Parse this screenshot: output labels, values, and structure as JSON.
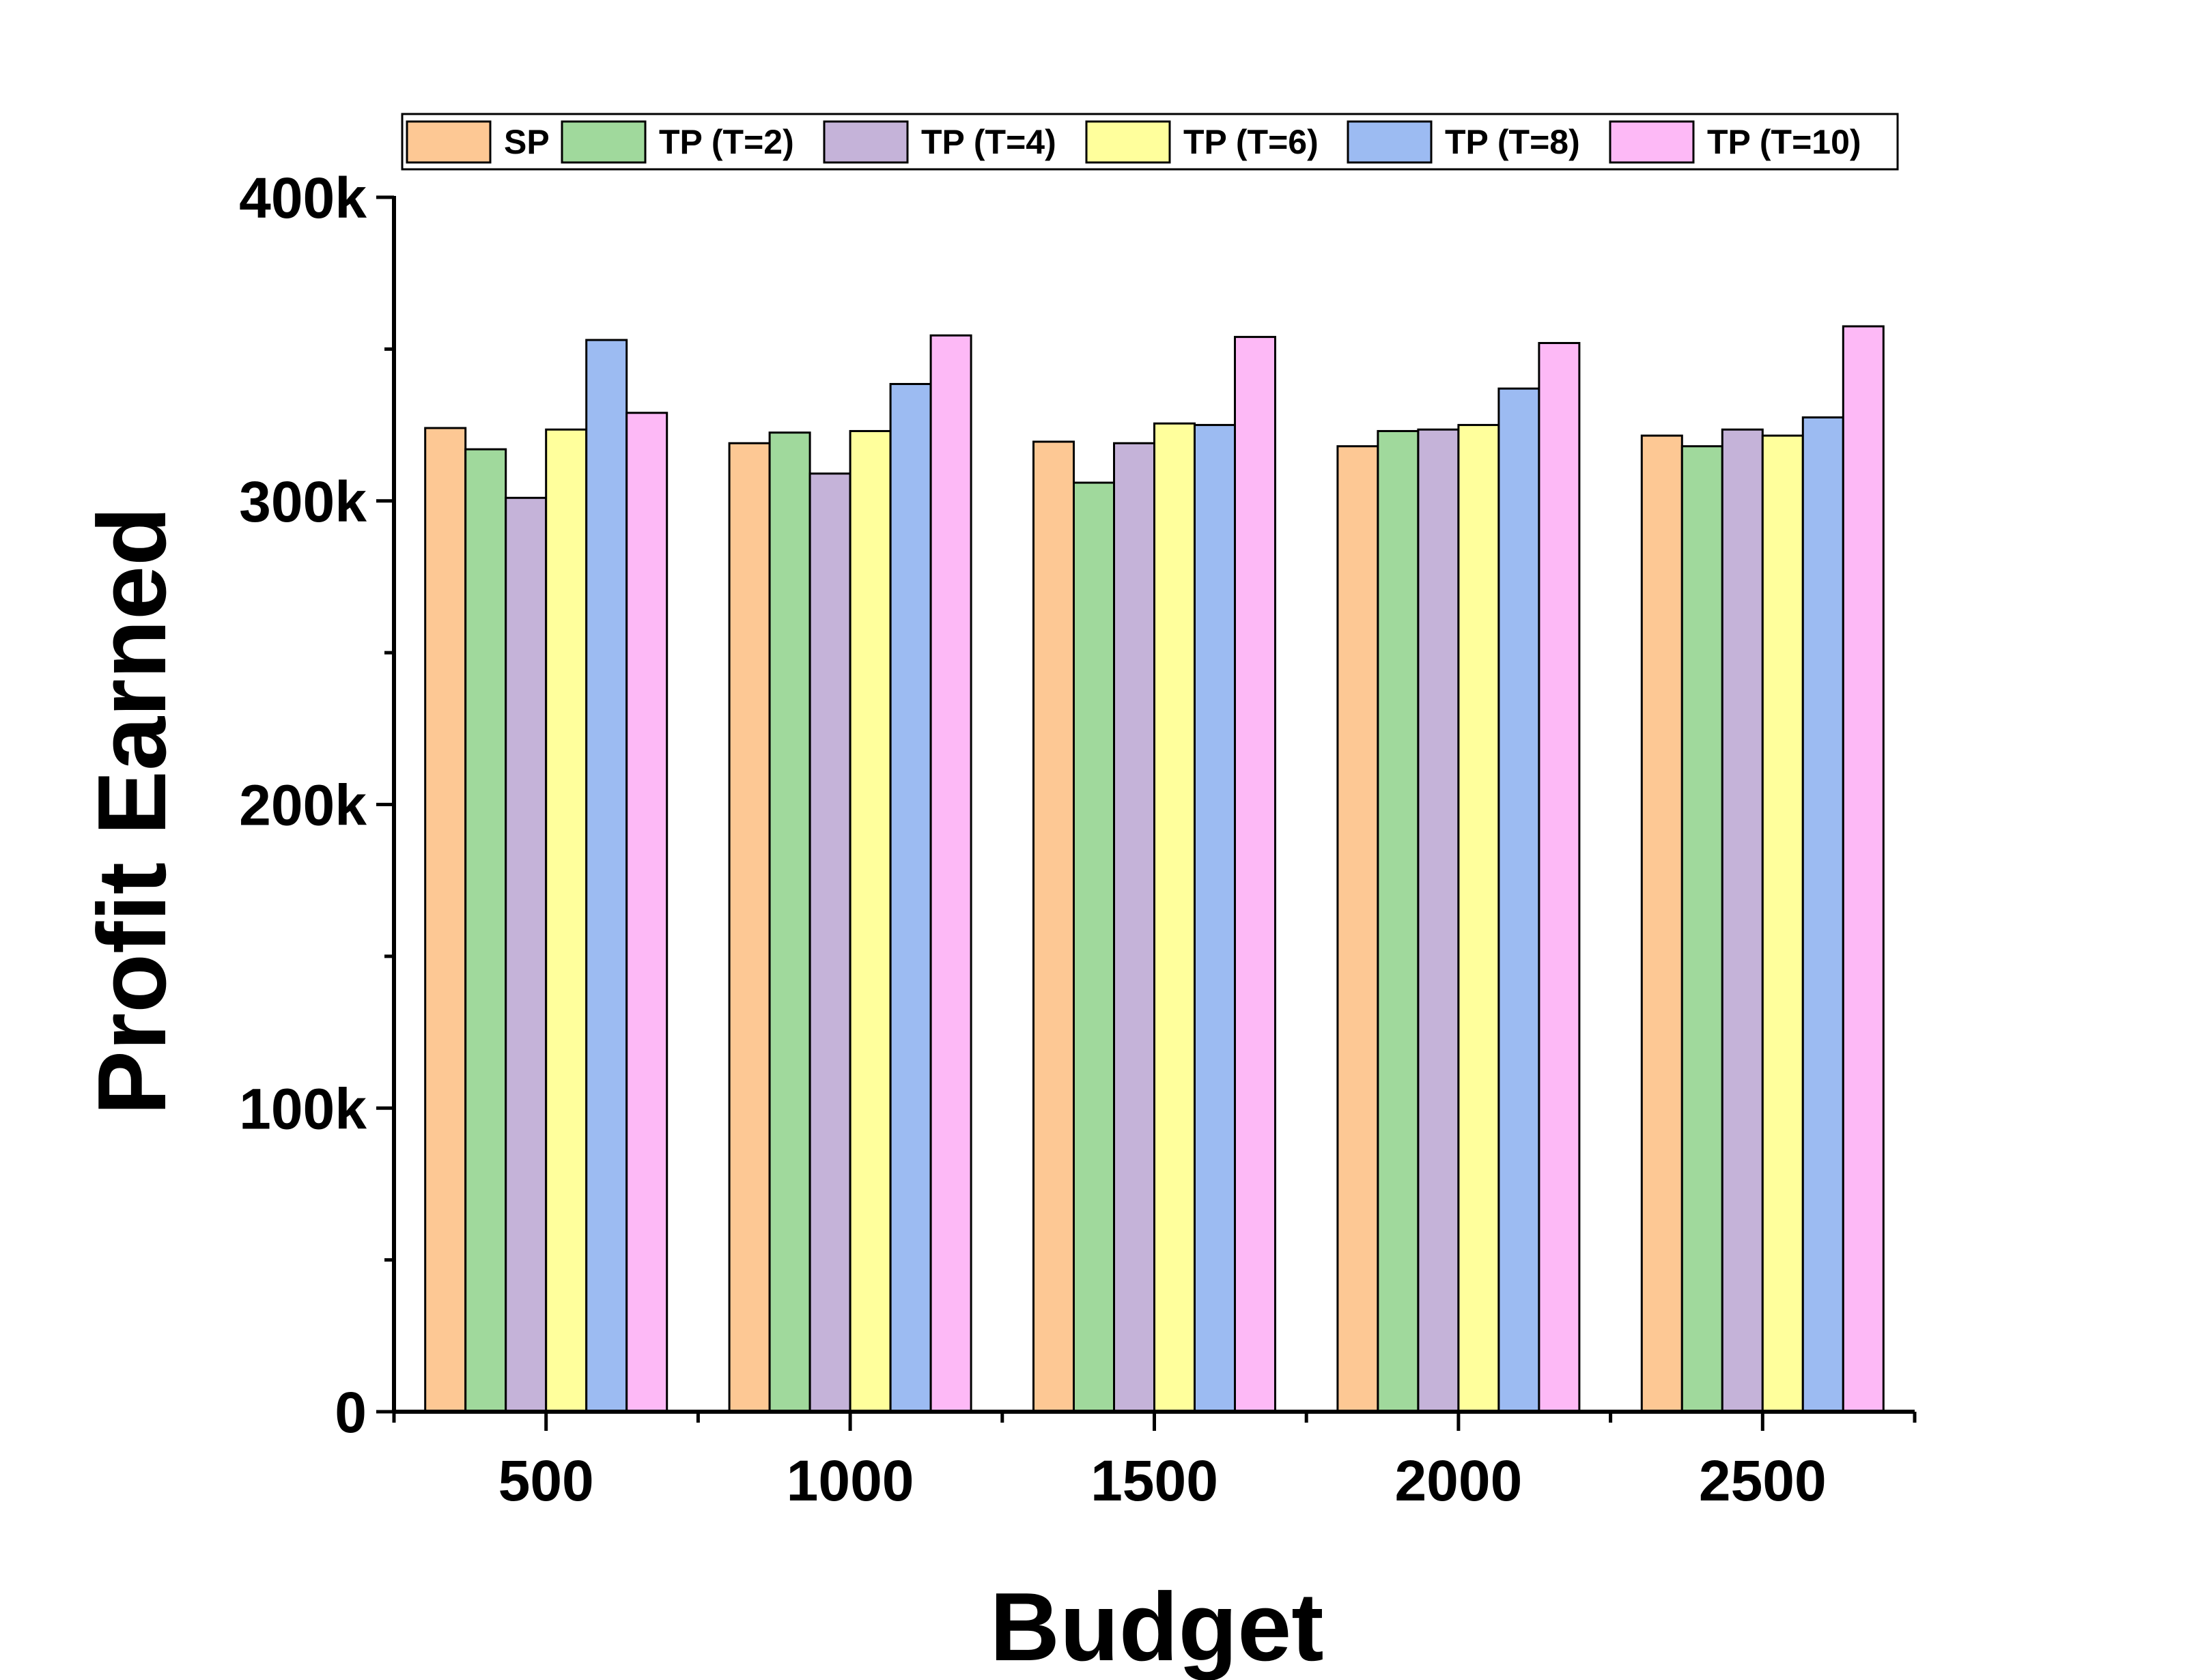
{
  "chart_data": {
    "type": "bar",
    "xlabel": "Budget",
    "ylabel": "Profit Earned",
    "categories": [
      "500",
      "1000",
      "1500",
      "2000",
      "2500"
    ],
    "ylim": [
      0,
      400000
    ],
    "yticks": [
      {
        "value": 0,
        "label": "0"
      },
      {
        "value": 100000,
        "label": "100k"
      },
      {
        "value": 200000,
        "label": "200k"
      },
      {
        "value": 300000,
        "label": "300k"
      },
      {
        "value": 400000,
        "label": "400k"
      }
    ],
    "legend_position": "top",
    "grid": false,
    "series": [
      {
        "name": "SP",
        "color": "#FDC894",
        "values": [
          324000,
          319000,
          319500,
          318000,
          321500
        ]
      },
      {
        "name": "TP (T=2)",
        "color": "#A0D99C",
        "values": [
          317000,
          322500,
          306000,
          323000,
          318000
        ]
      },
      {
        "name": "TP (T=4)",
        "color": "#C5B3D9",
        "values": [
          301000,
          309000,
          319000,
          323500,
          323500
        ]
      },
      {
        "name": "TP (T=6)",
        "color": "#FFFF9C",
        "values": [
          323500,
          323000,
          325500,
          325000,
          321500
        ]
      },
      {
        "name": "TP (T=8)",
        "color": "#9CBBF2",
        "values": [
          353000,
          338500,
          325000,
          337000,
          327500
        ]
      },
      {
        "name": "TP (T=10)",
        "color": "#FDB9F6",
        "values": [
          329000,
          354500,
          354000,
          352000,
          357500
        ]
      }
    ]
  }
}
